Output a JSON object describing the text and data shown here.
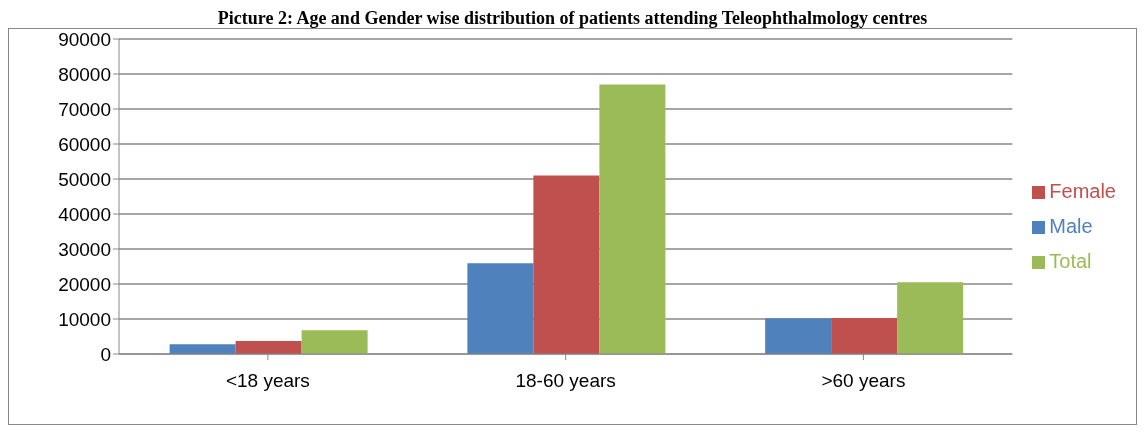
{
  "chart_data": {
    "type": "bar",
    "title": "Picture 2: Age and Gender wise distribution of patients attending Teleophthalmology centres",
    "categories": [
      "<18 years",
      "18-60 years",
      ">60 years"
    ],
    "series": [
      {
        "name": "Male",
        "color": "#4f81bd",
        "values": [
          2800,
          25900,
          10200
        ]
      },
      {
        "name": "Female",
        "color": "#c0504d",
        "values": [
          3700,
          51000,
          10300
        ]
      },
      {
        "name": "Total",
        "color": "#9bbb59",
        "values": [
          6800,
          77000,
          20500
        ]
      }
    ],
    "ylim": [
      0,
      90000
    ],
    "yticks": [
      0,
      10000,
      20000,
      30000,
      40000,
      50000,
      60000,
      70000,
      80000,
      90000
    ],
    "grid": "y",
    "legend": "right"
  }
}
